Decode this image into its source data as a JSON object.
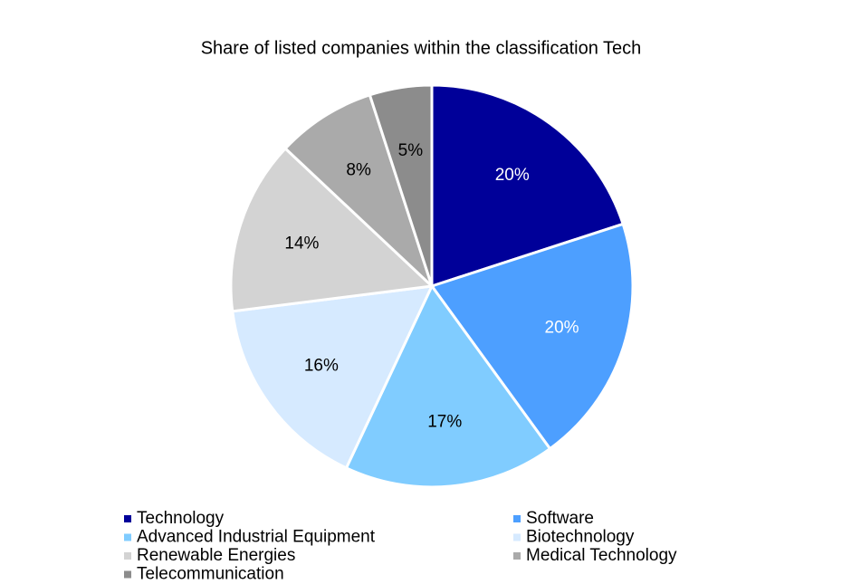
{
  "chart_data": {
    "type": "pie",
    "title": "Share of listed companies within the classification Tech",
    "categories": [
      "Technology",
      "Software",
      "Advanced Industrial Equipment",
      "Biotechnology",
      "Renewable Energies",
      "Medical Technology",
      "Telecommunication"
    ],
    "values": [
      20,
      20,
      17,
      16,
      14,
      8,
      5
    ],
    "value_labels": [
      "20%",
      "20%",
      "17%",
      "16%",
      "14%",
      "8%",
      "5%"
    ],
    "colors": [
      "#000099",
      "#4d9fff",
      "#80ccff",
      "#d6eaff",
      "#d3d3d3",
      "#aaaaaa",
      "#8c8c8c"
    ],
    "legend": "bottom"
  }
}
